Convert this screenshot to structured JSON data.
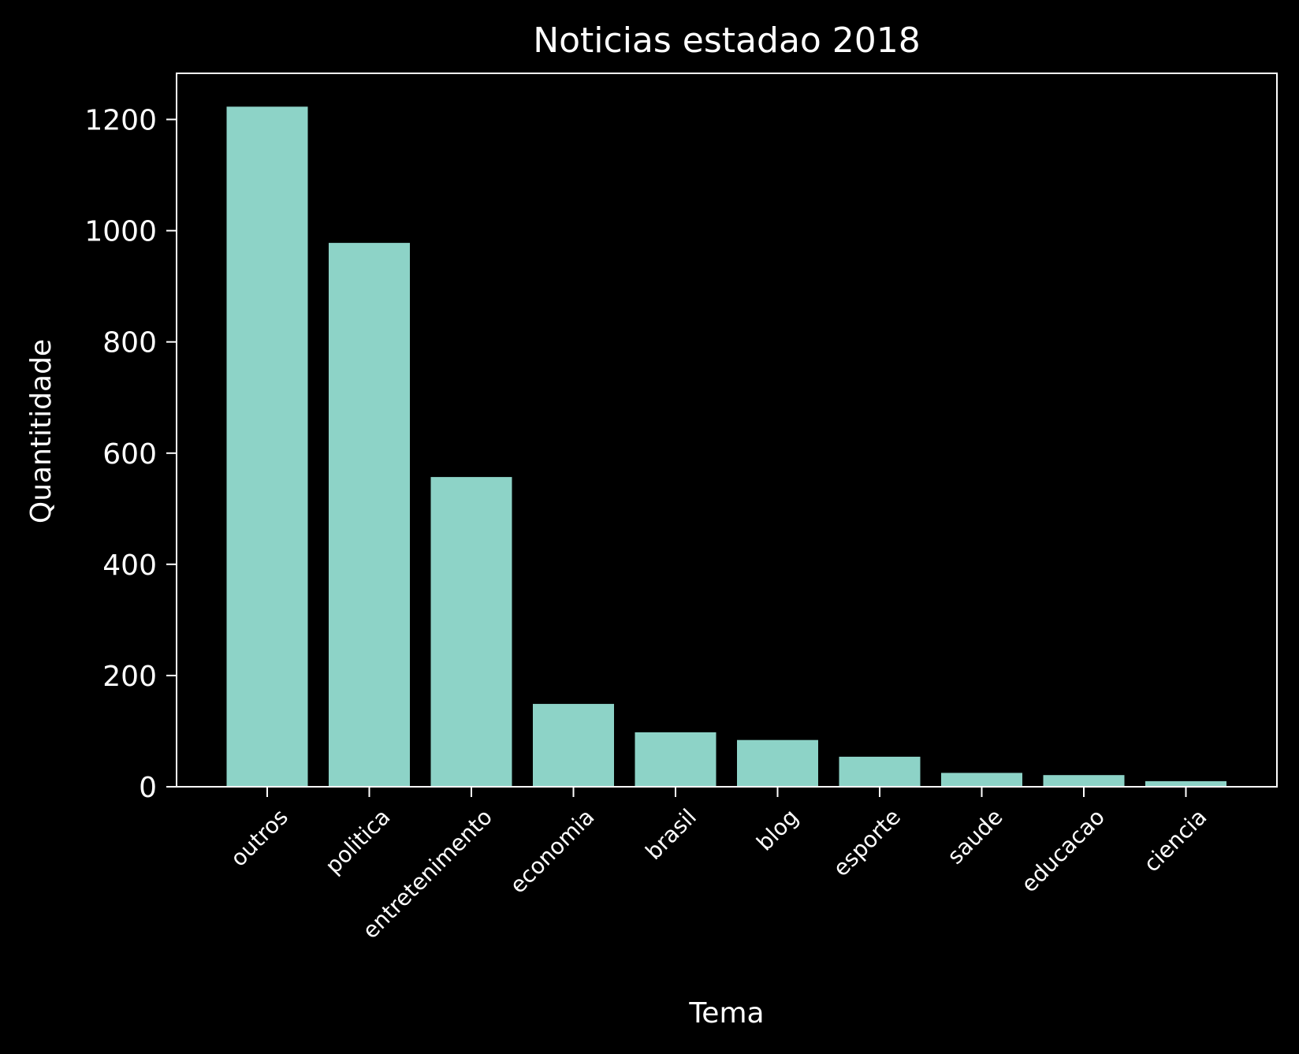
{
  "chart_data": {
    "type": "bar",
    "title": "Noticias estadao 2018",
    "xlabel": "Tema",
    "ylabel": "Quantitidade",
    "categories": [
      "outros",
      "politica",
      "entretenimento",
      "economia",
      "brasil",
      "blog",
      "esporte",
      "saude",
      "educacao",
      "ciencia"
    ],
    "values": [
      1223,
      978,
      557,
      149,
      98,
      84,
      54,
      25,
      21,
      10
    ],
    "ylim": [
      0,
      1283
    ],
    "yticks": [
      0,
      200,
      400,
      600,
      800,
      1000,
      1200
    ],
    "grid": false,
    "legend": "none",
    "colors": {
      "background": "#000000",
      "bar": "#8dd3c7",
      "axis": "#ffffff",
      "text": "#ffffff"
    }
  }
}
